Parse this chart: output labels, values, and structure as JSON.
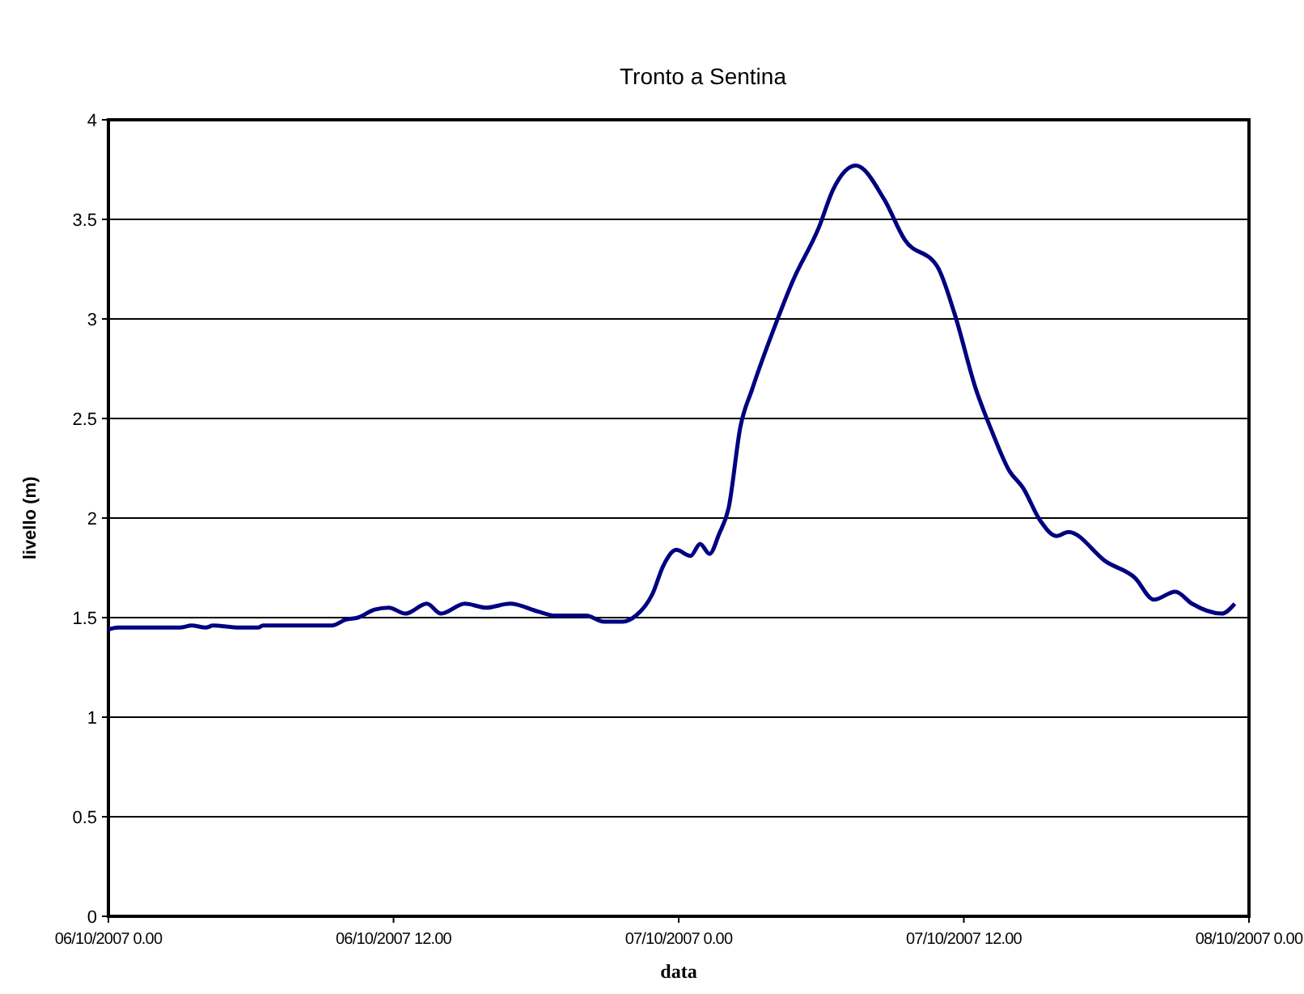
{
  "chart_data": {
    "type": "line",
    "title": "Tronto a Sentina",
    "xlabel": "data",
    "ylabel": "livello (m)",
    "xlim": [
      "2007-10-06T00:00",
      "2007-10-08T00:00"
    ],
    "xticks": [
      {
        "value": "2007-10-06T00:00",
        "label": "06/10/2007 0.00"
      },
      {
        "value": "2007-10-06T12:00",
        "label": "06/10/2007 12.00"
      },
      {
        "value": "2007-10-07T00:00",
        "label": "07/10/2007 0.00"
      },
      {
        "value": "2007-10-07T12:00",
        "label": "07/10/2007 12.00"
      },
      {
        "value": "2007-10-08T00:00",
        "label": "08/10/2007 0.00"
      }
    ],
    "ylim": [
      0,
      4
    ],
    "yticks": [
      0,
      0.5,
      1,
      1.5,
      2,
      2.5,
      3,
      3.5,
      4
    ],
    "grid": "y",
    "marker": "none",
    "line_style": "solid",
    "series": [
      {
        "color": "#000080",
        "x": [
          "2007-10-06T00:00",
          "2007-10-06T00:24",
          "2007-10-06T03:00",
          "2007-10-06T03:30",
          "2007-10-06T04:06",
          "2007-10-06T04:24",
          "2007-10-06T05:30",
          "2007-10-06T06:18",
          "2007-10-06T06:30",
          "2007-10-06T09:24",
          "2007-10-06T10:00",
          "2007-10-06T10:30",
          "2007-10-06T11:12",
          "2007-10-06T11:48",
          "2007-10-06T12:30",
          "2007-10-06T13:24",
          "2007-10-06T14:00",
          "2007-10-06T15:00",
          "2007-10-06T15:54",
          "2007-10-06T16:54",
          "2007-10-06T18:06",
          "2007-10-06T18:48",
          "2007-10-06T20:06",
          "2007-10-06T20:51",
          "2007-10-06T21:39",
          "2007-10-06T22:12",
          "2007-10-06T22:54",
          "2007-10-06T23:21",
          "2007-10-06T23:54",
          "2007-10-07T00:30",
          "2007-10-07T00:54",
          "2007-10-07T01:18",
          "2007-10-07T01:42",
          "2007-10-07T02:06",
          "2007-10-07T02:36",
          "2007-10-07T03:06",
          "2007-10-07T04:06",
          "2007-10-07T04:48",
          "2007-10-07T05:54",
          "2007-10-07T06:30",
          "2007-10-07T07:27",
          "2007-10-07T08:39",
          "2007-10-07T09:30",
          "2007-10-07T10:54",
          "2007-10-07T11:36",
          "2007-10-07T12:30",
          "2007-10-07T13:12",
          "2007-10-07T13:54",
          "2007-10-07T14:30",
          "2007-10-07T15:12",
          "2007-10-07T15:54",
          "2007-10-07T16:24",
          "2007-10-07T18:00",
          "2007-10-07T19:12",
          "2007-10-07T20:00",
          "2007-10-07T20:54",
          "2007-10-07T21:36",
          "2007-10-07T22:51",
          "2007-10-07T23:24"
        ],
        "values": [
          1.44,
          1.45,
          1.45,
          1.46,
          1.45,
          1.46,
          1.45,
          1.45,
          1.46,
          1.46,
          1.49,
          1.5,
          1.54,
          1.55,
          1.52,
          1.57,
          1.52,
          1.57,
          1.55,
          1.57,
          1.53,
          1.51,
          1.51,
          1.48,
          1.48,
          1.51,
          1.62,
          1.76,
          1.84,
          1.81,
          1.87,
          1.82,
          1.92,
          2.05,
          2.46,
          2.65,
          2.98,
          3.19,
          3.46,
          3.65,
          3.77,
          3.6,
          3.4,
          3.26,
          3.03,
          2.65,
          2.43,
          2.24,
          2.15,
          1.99,
          1.91,
          1.93,
          1.78,
          1.7,
          1.59,
          1.63,
          1.57,
          1.52,
          1.57
        ]
      }
    ]
  }
}
